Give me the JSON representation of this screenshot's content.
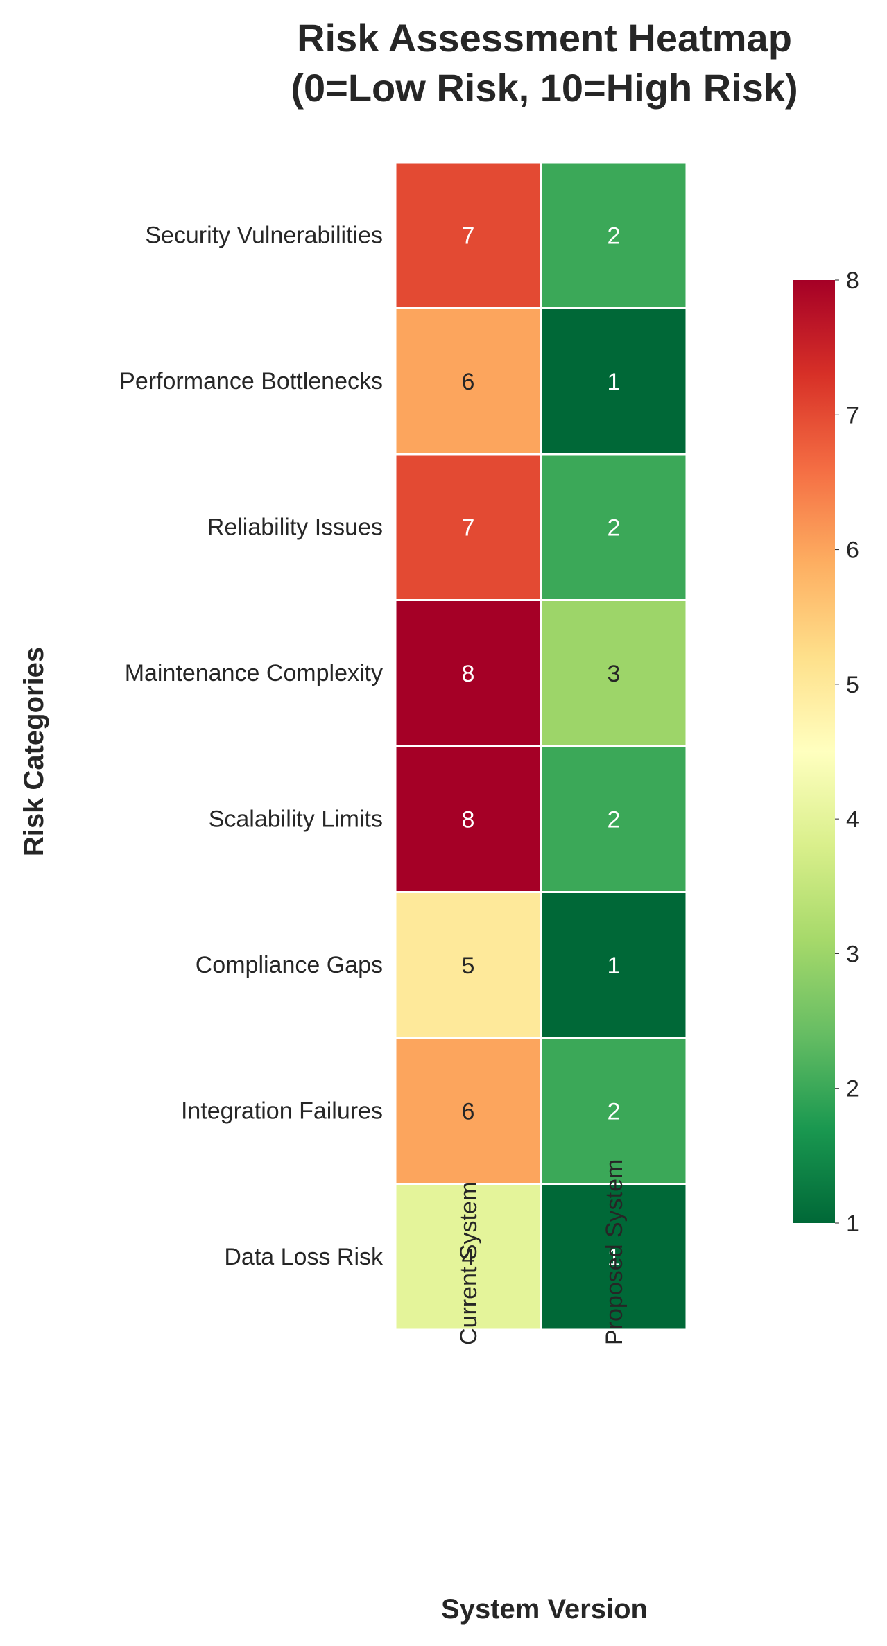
{
  "chart_data": {
    "type": "heatmap",
    "title": "Risk Assessment Heatmap\n(0=Low Risk, 10=High Risk)",
    "xlabel": "System Version",
    "ylabel": "Risk Categories",
    "x_categories": [
      "Current System",
      "Proposed System"
    ],
    "y_categories": [
      "Security Vulnerabilities",
      "Performance Bottlenecks",
      "Reliability Issues",
      "Maintenance Complexity",
      "Scalability Limits",
      "Compliance Gaps",
      "Integration Failures",
      "Data Loss Risk"
    ],
    "values": [
      [
        7,
        2
      ],
      [
        6,
        1
      ],
      [
        7,
        2
      ],
      [
        8,
        3
      ],
      [
        8,
        2
      ],
      [
        5,
        1
      ],
      [
        6,
        2
      ],
      [
        4,
        1
      ]
    ],
    "colorbar": {
      "min": 1,
      "max": 8,
      "ticks": [
        1,
        2,
        3,
        4,
        5,
        6,
        7,
        8
      ],
      "colormap": "RdYlGn_r"
    },
    "annotations": true,
    "grid": false
  }
}
